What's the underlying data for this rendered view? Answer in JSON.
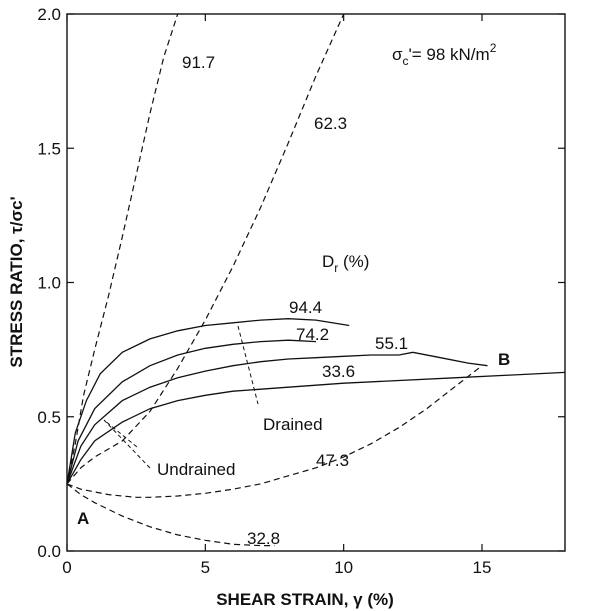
{
  "chart_data": {
    "type": "line",
    "title": "",
    "xlabel": "SHEAR STRAIN, γ (%)",
    "ylabel": "STRESS RATIO, τ/σc'",
    "xlim": [
      0,
      18
    ],
    "ylim": [
      0,
      2.0
    ],
    "x_ticks": [
      0,
      5,
      10,
      15
    ],
    "x_tick_labels": [
      "0",
      "5",
      "10",
      "15"
    ],
    "y_ticks": [
      0,
      0.5,
      1.0,
      1.5,
      2.0
    ],
    "y_tick_labels": [
      "0.0",
      "0.5",
      "1.0",
      "1.5",
      "2.0"
    ],
    "grid": false,
    "series": [
      {
        "name": "94.4",
        "style": "solid",
        "x": [
          0,
          0.3,
          0.7,
          1.2,
          2,
          3,
          4,
          5,
          6,
          7,
          8,
          9,
          10.2
        ],
        "y": [
          0.25,
          0.44,
          0.56,
          0.66,
          0.74,
          0.79,
          0.82,
          0.84,
          0.85,
          0.86,
          0.865,
          0.86,
          0.84
        ]
      },
      {
        "name": "74.2",
        "style": "solid",
        "x": [
          0,
          0.4,
          1,
          2,
          3,
          4,
          5,
          6,
          7,
          8,
          9
        ],
        "y": [
          0.25,
          0.41,
          0.53,
          0.63,
          0.69,
          0.73,
          0.755,
          0.77,
          0.78,
          0.785,
          0.78
        ]
      },
      {
        "name": "55.1",
        "style": "solid",
        "x": [
          0,
          0.5,
          1,
          2,
          3,
          4,
          5,
          6,
          7,
          8,
          9,
          10,
          11,
          12,
          12.5,
          13.5,
          14.5,
          15.2
        ],
        "y": [
          0.25,
          0.39,
          0.47,
          0.56,
          0.61,
          0.645,
          0.67,
          0.69,
          0.705,
          0.715,
          0.72,
          0.725,
          0.73,
          0.73,
          0.74,
          0.72,
          0.7,
          0.69
        ]
      },
      {
        "name": "33.6",
        "style": "solid",
        "x": [
          0,
          0.5,
          1,
          2,
          3,
          4,
          5,
          6,
          8,
          10,
          12,
          14,
          16,
          18
        ],
        "y": [
          0.25,
          0.34,
          0.41,
          0.48,
          0.53,
          0.56,
          0.58,
          0.595,
          0.61,
          0.625,
          0.635,
          0.645,
          0.655,
          0.665
        ]
      },
      {
        "name": "91.7",
        "style": "dashed",
        "x": [
          0,
          0.3,
          0.6,
          1,
          1.5,
          2,
          2.5,
          3,
          3.5,
          4
        ],
        "y": [
          0.25,
          0.4,
          0.58,
          0.75,
          0.95,
          1.17,
          1.4,
          1.63,
          1.84,
          2.0
        ]
      },
      {
        "name": "62.3",
        "style": "dashed",
        "x": [
          0,
          0.5,
          1,
          1.5,
          2,
          3,
          4,
          5,
          6,
          7,
          8,
          9,
          10
        ],
        "y": [
          0.25,
          0.31,
          0.35,
          0.38,
          0.41,
          0.52,
          0.68,
          0.86,
          1.06,
          1.28,
          1.52,
          1.77,
          2.0
        ]
      },
      {
        "name": "47.3",
        "style": "dashed",
        "x": [
          0,
          0.5,
          1,
          1.5,
          2,
          2.5,
          3,
          4,
          5,
          6,
          7,
          8,
          9,
          10,
          11,
          12,
          13,
          14,
          15
        ],
        "y": [
          0.25,
          0.23,
          0.22,
          0.21,
          0.205,
          0.2,
          0.2,
          0.205,
          0.215,
          0.23,
          0.25,
          0.28,
          0.31,
          0.35,
          0.4,
          0.46,
          0.53,
          0.61,
          0.69
        ]
      },
      {
        "name": "32.8",
        "style": "dashed",
        "x": [
          0,
          0.5,
          1,
          2,
          3,
          4,
          5,
          6,
          7,
          7.5
        ],
        "y": [
          0.25,
          0.21,
          0.18,
          0.13,
          0.09,
          0.06,
          0.04,
          0.025,
          0.02,
          0.02
        ]
      }
    ],
    "annotations": {
      "sigma_prefix": "σ",
      "sigma_sub": "c",
      "sigma_suffix": "'= 98 kN/m",
      "sigma_sup": "2",
      "dr_prefix": "D",
      "dr_sub": "r",
      "dr_suffix": " (%)",
      "drained": "Drained",
      "undrained": "Undrained",
      "point_a": "A",
      "point_b": "B"
    }
  }
}
